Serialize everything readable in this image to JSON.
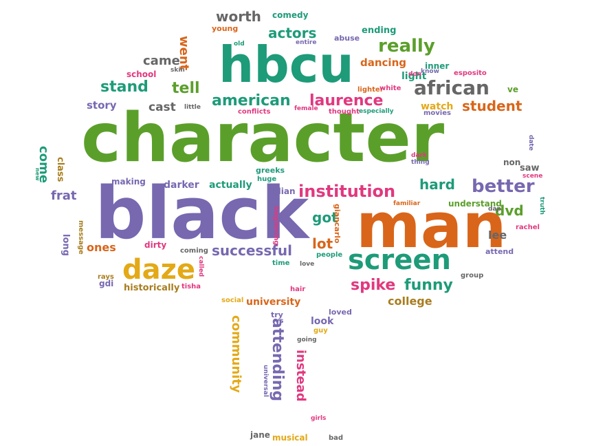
{
  "cloud": {
    "colors": {
      "green": "#5b9f2b",
      "teal": "#1e9b79",
      "purple": "#7768b0",
      "orange": "#d9651a",
      "pink": "#e1387f",
      "yellow": "#e3a917",
      "gray": "#666666",
      "brown": "#a87d1e"
    },
    "words": [
      {
        "text": "character",
        "color": "green"
      },
      {
        "text": "black",
        "color": "purple"
      },
      {
        "text": "hbcu",
        "color": "teal"
      },
      {
        "text": "man",
        "color": "orange"
      },
      {
        "text": "screen",
        "color": "teal"
      },
      {
        "text": "daze",
        "color": "yellow"
      },
      {
        "text": "institution",
        "color": "pink"
      },
      {
        "text": "african",
        "color": "gray"
      },
      {
        "text": "american",
        "color": "teal"
      },
      {
        "text": "laurence",
        "color": "pink"
      },
      {
        "text": "stand",
        "color": "teal"
      },
      {
        "text": "tell",
        "color": "green"
      },
      {
        "text": "better",
        "color": "purple"
      },
      {
        "text": "really",
        "color": "green"
      },
      {
        "text": "actors",
        "color": "teal"
      },
      {
        "text": "worth",
        "color": "gray"
      },
      {
        "text": "came",
        "color": "gray"
      },
      {
        "text": "student",
        "color": "orange"
      },
      {
        "text": "successful",
        "color": "purple"
      },
      {
        "text": "spike",
        "color": "pink"
      },
      {
        "text": "funny",
        "color": "teal"
      },
      {
        "text": "hard",
        "color": "teal"
      },
      {
        "text": "dvd",
        "color": "green"
      },
      {
        "text": "cast",
        "color": "gray"
      },
      {
        "text": "story",
        "color": "purple"
      },
      {
        "text": "got",
        "color": "teal"
      },
      {
        "text": "lot",
        "color": "orange"
      },
      {
        "text": "lee",
        "color": "gray"
      },
      {
        "text": "went",
        "color": "orange"
      },
      {
        "text": "community",
        "color": "yellow"
      },
      {
        "text": "attending",
        "color": "purple"
      },
      {
        "text": "instead",
        "color": "pink"
      },
      {
        "text": "come",
        "color": "teal"
      },
      {
        "text": "class",
        "color": "brown"
      },
      {
        "text": "frat",
        "color": "purple"
      },
      {
        "text": "ones",
        "color": "orange"
      },
      {
        "text": "university",
        "color": "orange"
      },
      {
        "text": "college",
        "color": "brown"
      },
      {
        "text": "historically",
        "color": "brown"
      },
      {
        "text": "actually",
        "color": "teal"
      },
      {
        "text": "darker",
        "color": "purple"
      },
      {
        "text": "making",
        "color": "purple"
      },
      {
        "text": "dirty",
        "color": "pink"
      },
      {
        "text": "dancing",
        "color": "orange"
      },
      {
        "text": "light",
        "color": "teal"
      },
      {
        "text": "watch",
        "color": "yellow"
      },
      {
        "text": "understand",
        "color": "green"
      },
      {
        "text": "comedy",
        "color": "teal"
      },
      {
        "text": "young",
        "color": "orange"
      },
      {
        "text": "ending",
        "color": "teal"
      },
      {
        "text": "abuse",
        "color": "purple"
      },
      {
        "text": "inner",
        "color": "teal"
      },
      {
        "text": "lighter",
        "color": "orange"
      },
      {
        "text": "white",
        "color": "pink"
      },
      {
        "text": "thought",
        "color": "pink"
      },
      {
        "text": "especially",
        "color": "teal"
      },
      {
        "text": "movies",
        "color": "purple"
      },
      {
        "text": "conflicts",
        "color": "pink"
      },
      {
        "text": "female",
        "color": "pink"
      },
      {
        "text": "little",
        "color": "gray"
      },
      {
        "text": "school",
        "color": "pink"
      },
      {
        "text": "skin",
        "color": "gray"
      },
      {
        "text": "old",
        "color": "teal"
      },
      {
        "text": "entire",
        "color": "purple"
      },
      {
        "text": "esposito",
        "color": "pink"
      },
      {
        "text": "know",
        "color": "purple"
      },
      {
        "text": "don",
        "color": "pink"
      },
      {
        "text": "ve",
        "color": "green"
      },
      {
        "text": "date",
        "color": "purple"
      },
      {
        "text": "non",
        "color": "gray"
      },
      {
        "text": "saw",
        "color": "gray"
      },
      {
        "text": "scene",
        "color": "pink"
      },
      {
        "text": "truth",
        "color": "teal"
      },
      {
        "text": "rachel",
        "color": "pink"
      },
      {
        "text": "dap",
        "color": "gray"
      },
      {
        "text": "familiar",
        "color": "orange"
      },
      {
        "text": "giancarlo",
        "color": "orange"
      },
      {
        "text": "beginning",
        "color": "pink"
      },
      {
        "text": "greeks",
        "color": "teal"
      },
      {
        "text": "huge",
        "color": "teal"
      },
      {
        "text": "julian",
        "color": "purple"
      },
      {
        "text": "dark",
        "color": "pink"
      },
      {
        "text": "thing",
        "color": "purple"
      },
      {
        "text": "attend",
        "color": "purple"
      },
      {
        "text": "group",
        "color": "gray"
      },
      {
        "text": "people",
        "color": "teal"
      },
      {
        "text": "time",
        "color": "teal"
      },
      {
        "text": "love",
        "color": "gray"
      },
      {
        "text": "coming",
        "color": "gray"
      },
      {
        "text": "called",
        "color": "pink"
      },
      {
        "text": "tisha",
        "color": "pink"
      },
      {
        "text": "hair",
        "color": "pink"
      },
      {
        "text": "social",
        "color": "yellow"
      },
      {
        "text": "try",
        "color": "purple"
      },
      {
        "text": "vs",
        "color": "purple"
      },
      {
        "text": "look",
        "color": "purple"
      },
      {
        "text": "guy",
        "color": "yellow"
      },
      {
        "text": "going",
        "color": "gray"
      },
      {
        "text": "loved",
        "color": "purple"
      },
      {
        "text": "universal",
        "color": "purple"
      },
      {
        "text": "girls",
        "color": "pink"
      },
      {
        "text": "jane",
        "color": "gray"
      },
      {
        "text": "musical",
        "color": "yellow"
      },
      {
        "text": "bad",
        "color": "gray"
      },
      {
        "text": "long",
        "color": "purple"
      },
      {
        "text": "message",
        "color": "brown"
      },
      {
        "text": "gdi",
        "color": "purple"
      },
      {
        "text": "rays",
        "color": "brown"
      },
      {
        "text": "new",
        "color": "teal"
      }
    ]
  }
}
